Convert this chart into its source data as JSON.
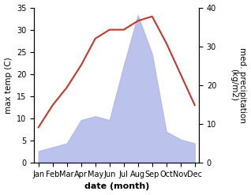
{
  "months": [
    "Jan",
    "Feb",
    "Mar",
    "Apr",
    "May",
    "Jun",
    "Jul",
    "Aug",
    "Sep",
    "Oct",
    "Nov",
    "Dec"
  ],
  "temperature": [
    8,
    13,
    17,
    22,
    28,
    30,
    30,
    32,
    33,
    27,
    20,
    13
  ],
  "precipitation_right": [
    3,
    4,
    5,
    11,
    12,
    11,
    25,
    38,
    28,
    8,
    6,
    5
  ],
  "temp_color": "#c0392b",
  "precip_fill_color": "#b0b8e8",
  "left_ylim": [
    0,
    35
  ],
  "right_ylim": [
    0,
    40
  ],
  "left_yticks": [
    0,
    5,
    10,
    15,
    20,
    25,
    30,
    35
  ],
  "right_yticks": [
    0,
    10,
    20,
    30,
    40
  ],
  "xlabel": "date (month)",
  "ylabel_left": "max temp (C)",
  "ylabel_right": "med. precipitation\n(kg/m2)",
  "label_fontsize": 7.5,
  "tick_fontsize": 7,
  "xlabel_fontsize": 8,
  "linewidth": 1.5
}
